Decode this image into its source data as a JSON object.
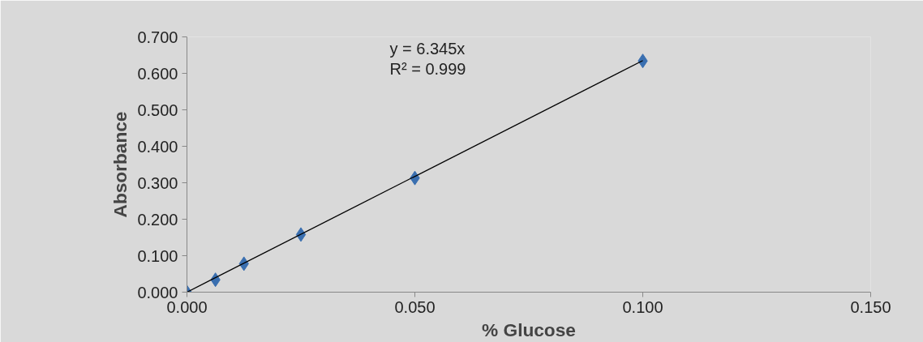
{
  "chart_data": {
    "type": "scatter",
    "xlabel": "% Glucose",
    "ylabel": "Absorbance",
    "xlim": [
      0,
      0.15
    ],
    "ylim": [
      0,
      0.7
    ],
    "xticks": [
      {
        "value": 0,
        "label": "0.000"
      },
      {
        "value": 0.05,
        "label": "0.050"
      },
      {
        "value": 0.1,
        "label": "0.100"
      },
      {
        "value": 0.15,
        "label": "0.150"
      }
    ],
    "yticks": [
      {
        "value": 0,
        "label": "0.000"
      },
      {
        "value": 0.1,
        "label": "0.100"
      },
      {
        "value": 0.2,
        "label": "0.200"
      },
      {
        "value": 0.3,
        "label": "0.300"
      },
      {
        "value": 0.4,
        "label": "0.400"
      },
      {
        "value": 0.5,
        "label": "0.500"
      },
      {
        "value": 0.6,
        "label": "0.600"
      },
      {
        "value": 0.7,
        "label": "0.700"
      }
    ],
    "grid": false,
    "series": [
      {
        "marker": "diamond",
        "color": "#3a6fb0",
        "x": [
          0,
          0.00625,
          0.0125,
          0.025,
          0.05,
          0.1
        ],
        "values": [
          0,
          0.034,
          0.078,
          0.158,
          0.313,
          0.634
        ]
      },
      {
        "type": "line",
        "color": "#000000",
        "x": [
          0,
          0.1
        ],
        "values": [
          0,
          0.635
        ]
      }
    ],
    "annotations": [
      "y = 6.345x",
      "R² = 0.999"
    ]
  }
}
